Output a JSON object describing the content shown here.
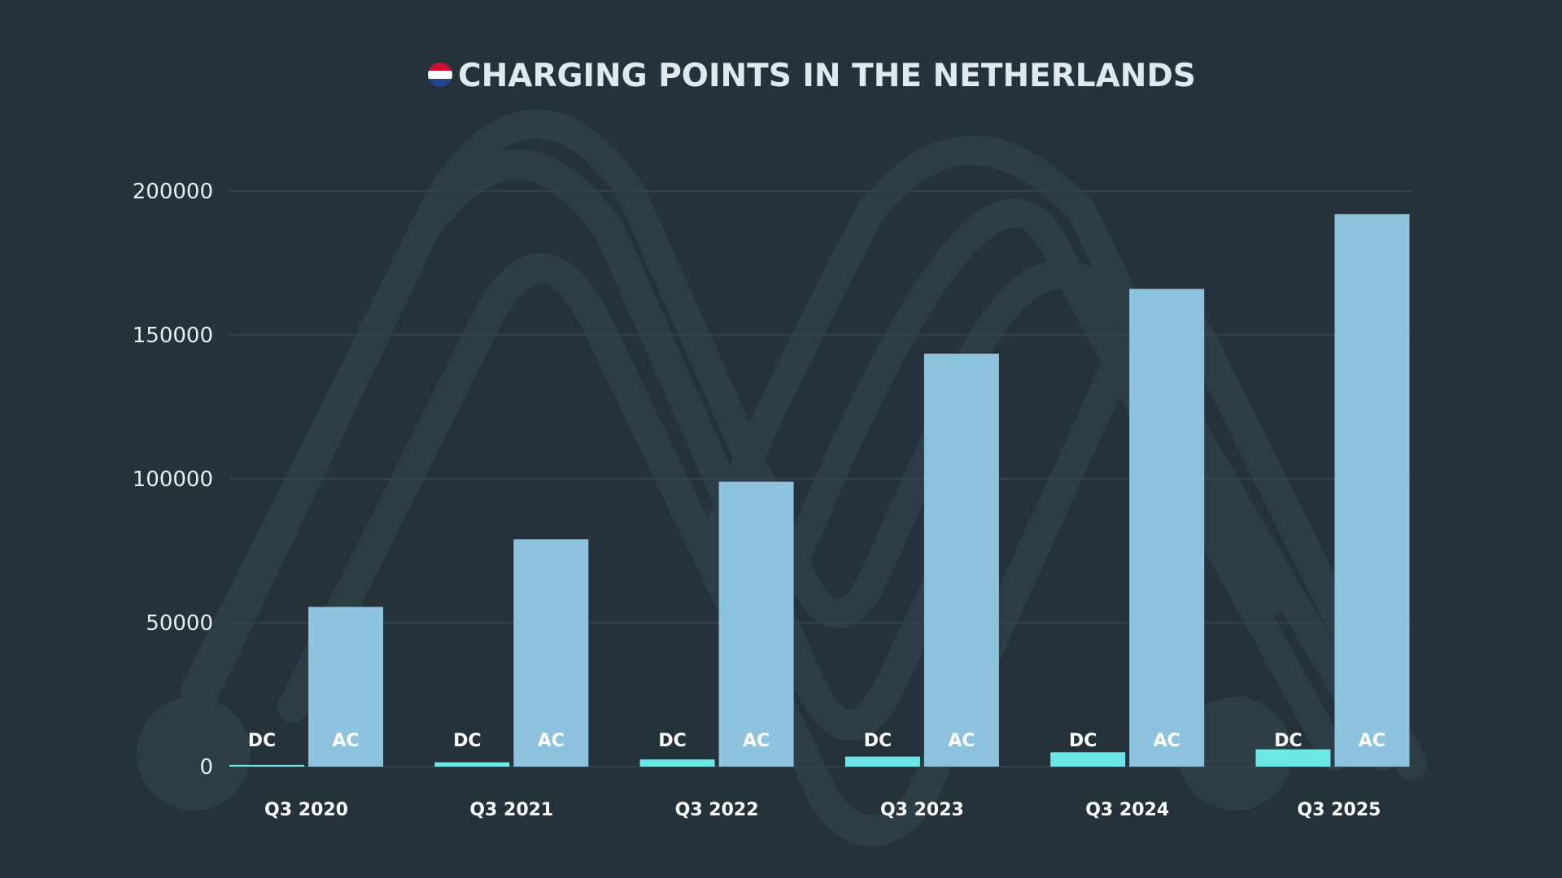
{
  "colors": {
    "background": "#25323a",
    "watermark": "#2c3d43",
    "grid": "#3a4950",
    "ac_bar": "#8dc3df",
    "dc_bar": "#6ee6e6",
    "title_text": "#dfe9ef",
    "tick_text": "#e6edf1",
    "bar_label_text": "#ffffff",
    "flag_red": "#c8102e",
    "flag_white": "#ffffff",
    "flag_blue": "#21468b"
  },
  "icons": {
    "title_icon": "netherlands-flag-icon"
  },
  "chart_data": {
    "type": "bar",
    "title": "CHARGING POINTS IN THE NETHERLANDS",
    "xlabel": "",
    "ylabel": "",
    "categories": [
      "Q3 2020",
      "Q3 2021",
      "Q3 2022",
      "Q3 2023",
      "Q3 2024",
      "Q3 2025"
    ],
    "series": [
      {
        "name": "DC",
        "values": [
          600,
          1500,
          2500,
          3500,
          5000,
          6000
        ]
      },
      {
        "name": "AC",
        "values": [
          55500,
          79000,
          99000,
          143500,
          166000,
          192000
        ]
      }
    ],
    "ylim": [
      0,
      200000
    ],
    "yticks": [
      "0",
      "50000",
      "100000",
      "150000",
      "200000"
    ],
    "grid": true,
    "legend": "none; series names printed inside each bar group"
  }
}
